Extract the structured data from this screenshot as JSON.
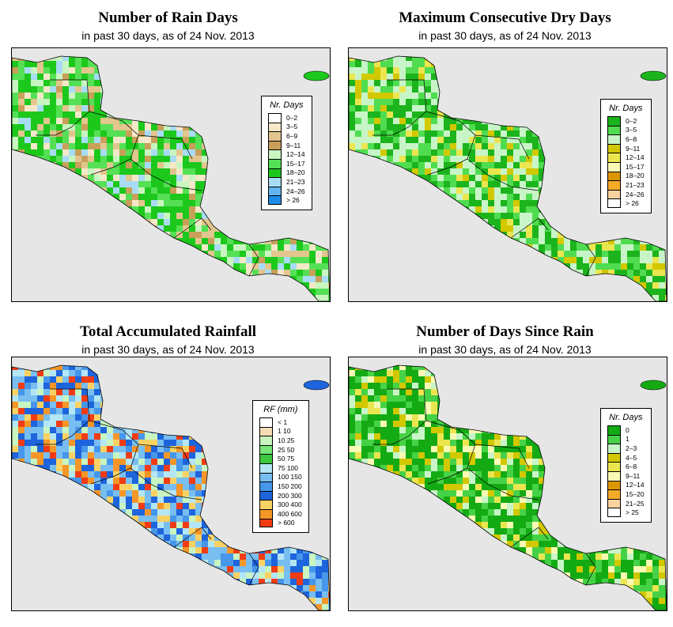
{
  "panels": [
    {
      "title": "Number of Rain Days",
      "subtitle": "in past 30 days, as of  24 Nov. 2013",
      "legend": {
        "title": "Nr. Days",
        "items": [
          {
            "label": "0–2",
            "color": "#ffffff"
          },
          {
            "label": "3–5",
            "color": "#f5e8c8"
          },
          {
            "label": "6–9",
            "color": "#e2c68e"
          },
          {
            "label": "9–11",
            "color": "#c8a05a"
          },
          {
            "label": "12–14",
            "color": "#c8f5c0"
          },
          {
            "label": "15–17",
            "color": "#55e055"
          },
          {
            "label": "18–20",
            "color": "#1cc81c"
          },
          {
            "label": "21–23",
            "color": "#a8dcf5"
          },
          {
            "label": "24–26",
            "color": "#64b4f0"
          },
          {
            "label": "> 26",
            "color": "#1e8ce6"
          }
        ]
      }
    },
    {
      "title": "Maximum Consecutive Dry Days",
      "subtitle": "in past 30 days, as of  24 Nov. 2013",
      "legend": {
        "title": "Nr. Days",
        "items": [
          {
            "label": "0–2",
            "color": "#1cb41c"
          },
          {
            "label": "3–5",
            "color": "#50dc50"
          },
          {
            "label": "6–8",
            "color": "#c8f5c8"
          },
          {
            "label": "9–11",
            "color": "#d2c800"
          },
          {
            "label": "12–14",
            "color": "#ebe650"
          },
          {
            "label": "15–17",
            "color": "#fafab4"
          },
          {
            "label": "18–20",
            "color": "#dc9600"
          },
          {
            "label": "21–23",
            "color": "#f5aa28"
          },
          {
            "label": "24–26",
            "color": "#fad2a0"
          },
          {
            "label": "> 26",
            "color": "#ffffff"
          }
        ]
      }
    },
    {
      "title": "Total Accumulated Rainfall",
      "subtitle": "in past 30 days, as of  24 Nov. 2013",
      "legend": {
        "title": "RF (mm)",
        "items": [
          {
            "label": "< 1",
            "color": "#ffffff"
          },
          {
            "label": "1   10",
            "color": "#f5dcb4"
          },
          {
            "label": "10   25",
            "color": "#c8f5c0"
          },
          {
            "label": "25   50",
            "color": "#78e678"
          },
          {
            "label": "50   75",
            "color": "#3cc83c"
          },
          {
            "label": "75   100",
            "color": "#b4e6f5"
          },
          {
            "label": "100   150",
            "color": "#78bef0"
          },
          {
            "label": "150   200",
            "color": "#4696eb"
          },
          {
            "label": "200   300",
            "color": "#1e64dc"
          },
          {
            "label": "300   400",
            "color": "#fad264"
          },
          {
            "label": "400   600",
            "color": "#f59628"
          },
          {
            "label": "> 600",
            "color": "#f03c14"
          }
        ]
      }
    },
    {
      "title": "Number of Days Since Rain",
      "subtitle": "in past 30 days, as of  24 Nov. 2013",
      "legend": {
        "title": "Nr. Days",
        "items": [
          {
            "label": "0",
            "color": "#14aa14"
          },
          {
            "label": "1",
            "color": "#46d246"
          },
          {
            "label": "2–3",
            "color": "#c8f5c8"
          },
          {
            "label": "4–5",
            "color": "#d2c800"
          },
          {
            "label": "6–8",
            "color": "#ebe650"
          },
          {
            "label": "9–11",
            "color": "#fafab4"
          },
          {
            "label": "12–14",
            "color": "#dc9600"
          },
          {
            "label": "15–20",
            "color": "#f5aa28"
          },
          {
            "label": "21–25",
            "color": "#fad2a0"
          },
          {
            "label": "> 25",
            "color": "#ffffff"
          }
        ]
      }
    }
  ]
}
